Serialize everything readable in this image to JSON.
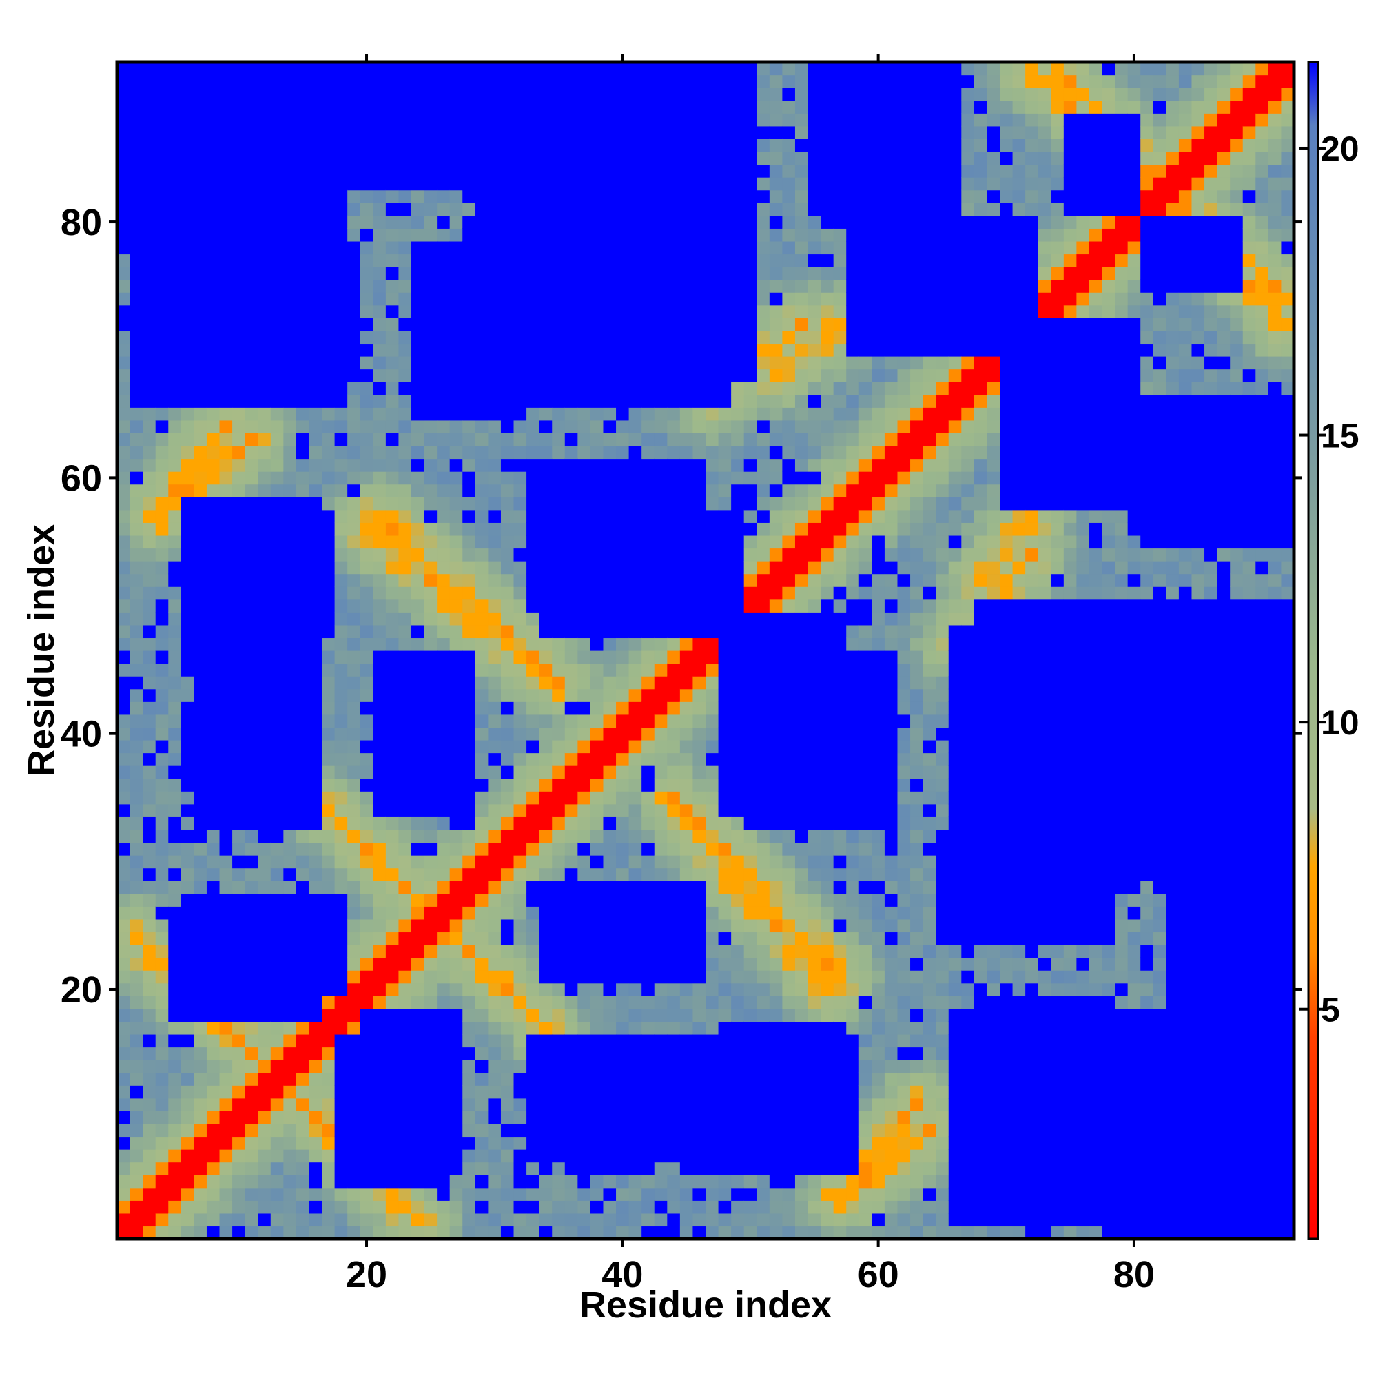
{
  "chart_data": {
    "type": "heatmap",
    "title": "",
    "xlabel": "Residue index",
    "ylabel": "Residue index",
    "n_residues": 92,
    "xlim": [
      1,
      92
    ],
    "ylim": [
      1,
      92
    ],
    "x_ticks": [
      20,
      40,
      60,
      80
    ],
    "y_ticks": [
      20,
      40,
      60,
      80
    ],
    "colorbar": {
      "ticks": [
        5,
        10,
        15,
        20
      ],
      "range": [
        1,
        21.5
      ],
      "stops": [
        {
          "value": 1,
          "color": "#ff0000"
        },
        {
          "value": 4.5,
          "color": "#ff4000"
        },
        {
          "value": 6,
          "color": "#ff8c00"
        },
        {
          "value": 7.5,
          "color": "#ffa500"
        },
        {
          "value": 8.5,
          "color": "#a8bb86"
        },
        {
          "value": 11,
          "color": "#9cb88c"
        },
        {
          "value": 14,
          "color": "#80a09c"
        },
        {
          "value": 17,
          "color": "#6a90b0"
        },
        {
          "value": 20.4,
          "color": "#5a80c0"
        },
        {
          "value": 21.5,
          "color": "#0000ff"
        }
      ]
    },
    "cap_value": 21.5,
    "colors": {
      "contact": "#ff0000",
      "close": "#ff8c00",
      "near": "#ffa500",
      "mid": "#9cb88c",
      "far": "#6a90b0",
      "beyond": "#0000ff"
    },
    "structure": {
      "diagonal_band_width": 2,
      "contact_segments": [
        {
          "name": "antiparallel-a",
          "i": [
            2,
            23
          ],
          "j": [
            24,
            3
          ]
        },
        {
          "name": "antiparallel-b",
          "i": [
            17,
            34
          ],
          "j": [
            34,
            17
          ]
        },
        {
          "name": "antiparallel-c",
          "i": [
            21,
            35
          ],
          "j": [
            57,
            44
          ]
        },
        {
          "name": "antiparallel-d",
          "i": [
            45,
            56
          ],
          "j": [
            33,
            20
          ]
        },
        {
          "name": "antiparallel-e",
          "i": [
            58,
            64
          ],
          "j": [
            4,
            9
          ]
        },
        {
          "name": "antiparallel-f",
          "i": [
            66,
            72
          ],
          "j": [
            47,
            54
          ]
        },
        {
          "name": "antiparallel-g",
          "i": [
            74,
            92
          ],
          "j": [
            92,
            72
          ]
        },
        {
          "name": "antiparallel-h",
          "i": [
            63,
            70
          ],
          "j": [
            81,
            74
          ]
        },
        {
          "name": "antiparallel-i",
          "i": [
            72,
            80
          ],
          "j": [
            70,
            63
          ]
        },
        {
          "name": "patch-1",
          "i": [
            52,
            57
          ],
          "j": [
            68,
            72
          ]
        },
        {
          "name": "patch-2",
          "i": [
            4,
            11
          ],
          "j": [
            57,
            63
          ]
        },
        {
          "name": "patch-3",
          "i": [
            36,
            45
          ],
          "j": [
            36,
            45
          ]
        }
      ],
      "empty_blocks": [
        {
          "i": [
            18,
            26
          ],
          "j": [
            5,
            16
          ]
        },
        {
          "i": [
            33,
            46
          ],
          "j": [
            7,
            16
          ]
        },
        {
          "i": [
            48,
            57
          ],
          "j": [
            6,
            17
          ]
        },
        {
          "i": [
            66,
            92
          ],
          "j": [
            2,
            18
          ]
        },
        {
          "i": [
            6,
            18
          ],
          "j": [
            20,
            27
          ]
        },
        {
          "i": [
            6,
            16
          ],
          "j": [
            45,
            58
          ]
        },
        {
          "i": [
            6,
            14
          ],
          "j": [
            36,
            42
          ]
        },
        {
          "i": [
            34,
            46
          ],
          "j": [
            21,
            28
          ]
        },
        {
          "i": [
            48,
            57
          ],
          "j": [
            34,
            49
          ]
        },
        {
          "i": [
            66,
            92
          ],
          "j": [
            29,
            48
          ]
        },
        {
          "i": [
            33,
            46
          ],
          "j": [
            50,
            61
          ]
        },
        {
          "i": [
            6,
            19
          ],
          "j": [
            68,
            78
          ]
        },
        {
          "i": [
            24,
            32
          ],
          "j": [
            65,
            78
          ]
        },
        {
          "i": [
            33,
            50
          ],
          "j": [
            68,
            92
          ]
        },
        {
          "i": [
            1,
            14
          ],
          "j": [
            78,
            92
          ]
        },
        {
          "i": [
            15,
            31
          ],
          "j": [
            83,
            92
          ]
        },
        {
          "i": [
            70,
            80
          ],
          "j": [
            58,
            72
          ]
        },
        {
          "i": [
            60,
            66
          ],
          "j": [
            70,
            78
          ]
        },
        {
          "i": [
            75,
            80
          ],
          "j": [
            81,
            88
          ]
        },
        {
          "i": [
            81,
            92
          ],
          "j": [
            55,
            66
          ]
        }
      ]
    }
  }
}
